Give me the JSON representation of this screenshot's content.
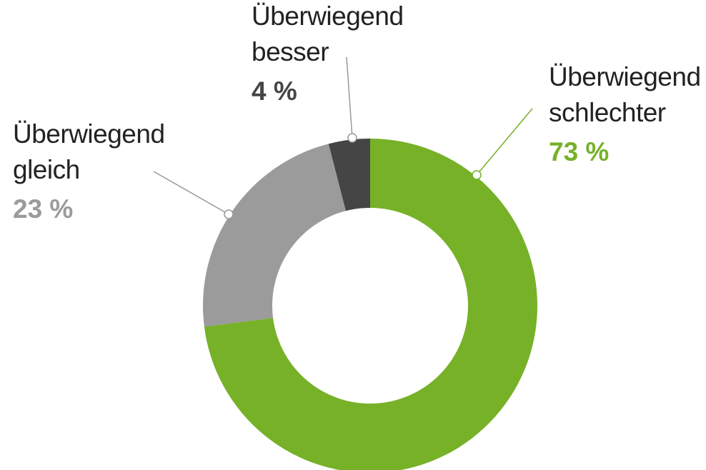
{
  "chart_data": {
    "type": "donut",
    "categories": [
      "Überwiegend schlechter",
      "Überwiegend gleich",
      "Überwiegend besser"
    ],
    "values": [
      73,
      23,
      4
    ],
    "value_labels": [
      "73 %",
      "23 %",
      "4 %"
    ],
    "colors": [
      "#76b128",
      "#9b9b9b",
      "#454545"
    ]
  }
}
